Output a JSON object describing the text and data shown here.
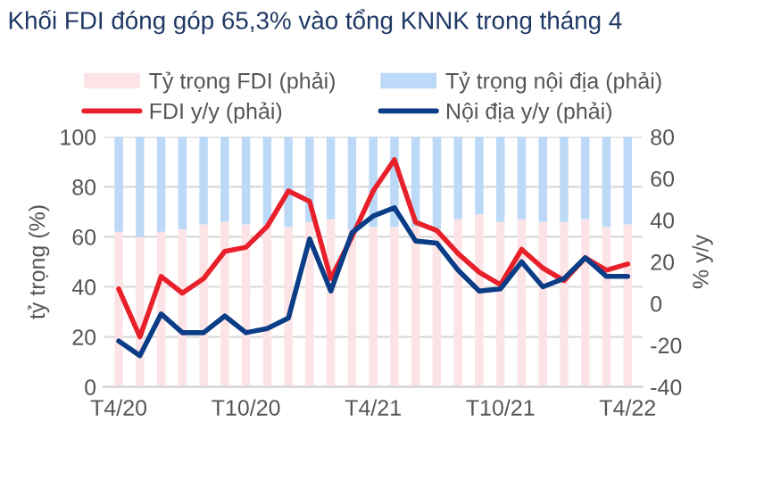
{
  "chart_data": {
    "type": "bar",
    "stacked": true,
    "title": "Khối FDI đóng góp 65,3% vào tổng KNNK trong tháng 4",
    "ylabel": "tỷ trọng (%)",
    "y2label": "% y/y",
    "categories": [
      "T4/20",
      null,
      null,
      null,
      null,
      null,
      "T10/20",
      null,
      null,
      null,
      null,
      null,
      "T4/21",
      null,
      null,
      null,
      null,
      null,
      "T10/21",
      null,
      null,
      null,
      null,
      null,
      "T4/22"
    ],
    "series": [
      {
        "name": "Tỷ trọng FDI (phải)",
        "color": "#fce4e6",
        "values": [
          62,
          60,
          62,
          63,
          65,
          66,
          65,
          65,
          64,
          66,
          67,
          63,
          64,
          64,
          64,
          63,
          67,
          69,
          66,
          67,
          66,
          66,
          67,
          64,
          65
        ]
      },
      {
        "name": "Tỷ trọng nội địa (phải)",
        "color": "#bcd9f7",
        "values": [
          38,
          40,
          38,
          37,
          35,
          34,
          35,
          35,
          36,
          34,
          33,
          37,
          36,
          36,
          36,
          37,
          33,
          31,
          34,
          33,
          34,
          34,
          33,
          36,
          35
        ]
      },
      {
        "name": "FDI y/y (phải)",
        "type": "line",
        "axis": "y2",
        "color": "#e8202a",
        "values": [
          7,
          -16,
          13,
          5,
          12,
          25,
          27,
          37,
          54,
          49,
          12,
          32,
          54,
          69,
          39,
          35,
          24,
          15,
          9,
          26,
          17,
          11,
          22,
          16,
          19
        ]
      },
      {
        "name": "Nội địa y/y (phải)",
        "type": "line",
        "axis": "y2",
        "color": "#0b3d87",
        "values": [
          -18,
          -25,
          -5,
          -14,
          -14,
          -6,
          -14,
          -12,
          -7,
          31,
          6,
          34,
          42,
          46,
          30,
          29,
          16,
          6,
          7,
          20,
          8,
          12,
          22,
          13,
          13
        ]
      }
    ],
    "ylim": [
      0,
      100
    ],
    "yticks": [
      0,
      20,
      40,
      60,
      80,
      100
    ],
    "y2lim": [
      -40,
      80
    ],
    "y2ticks": [
      -40,
      -20,
      0,
      20,
      40,
      60,
      80
    ],
    "grid": "y",
    "legend": "top",
    "marker": "none",
    "line_style": "solid"
  }
}
